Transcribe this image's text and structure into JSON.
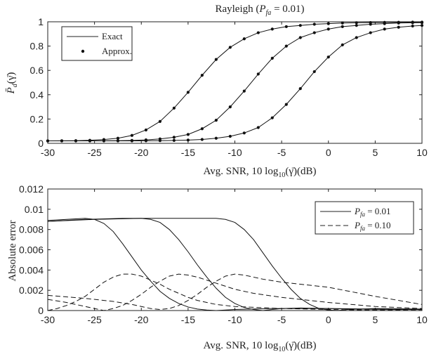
{
  "chart_data": [
    {
      "type": "line",
      "title_prefix": "Rayleigh (",
      "title_symbol": "P",
      "title_sub": "fa",
      "title_value": " = 0.01)",
      "xlabel_text": "Avg.  SNR, 10 log",
      "xlabel_sub": "10",
      "xlabel_tail": "(γ̄)(dB)",
      "ylabel_symbol": "P̄",
      "ylabel_sub": "d",
      "ylabel_tail": "(γ̄)",
      "xlim": [
        -30,
        10
      ],
      "ylim": [
        0,
        1
      ],
      "xticks": [
        "-30",
        "-25",
        "-20",
        "-15",
        "-10",
        "-5",
        "0",
        "5",
        "10"
      ],
      "yticks": [
        "0",
        "0.2",
        "0.4",
        "0.6",
        "0.8",
        "1"
      ],
      "legend": {
        "position": "top-left",
        "entries": [
          {
            "label": "Exact",
            "style": "solid-line"
          },
          {
            "label": "Approx.",
            "style": "dots"
          }
        ]
      },
      "series": [
        {
          "x": [
            -30,
            -28.5,
            -27,
            -25.5,
            -24,
            -22.5,
            -21,
            -19.5,
            -18,
            -16.5,
            -15,
            -13.5,
            -12,
            -10.5,
            -9,
            -7.5,
            -6,
            -4.5,
            -3,
            -1.5,
            0,
            1.5,
            3,
            4.5,
            6,
            7.5,
            9,
            10
          ],
          "y": [
            0.02,
            0.021,
            0.022,
            0.025,
            0.031,
            0.042,
            0.065,
            0.11,
            0.18,
            0.29,
            0.42,
            0.56,
            0.69,
            0.79,
            0.86,
            0.91,
            0.94,
            0.96,
            0.97,
            0.98,
            0.985,
            0.99,
            0.992,
            0.994,
            0.995,
            0.996,
            0.997,
            0.997
          ]
        },
        {
          "x": [
            -30,
            -28.5,
            -27,
            -25.5,
            -24,
            -22.5,
            -21,
            -19.5,
            -18,
            -16.5,
            -15,
            -13.5,
            -12,
            -10.5,
            -9,
            -7.5,
            -6,
            -4.5,
            -3,
            -1.5,
            0,
            1.5,
            3,
            4.5,
            6,
            7.5,
            9,
            10
          ],
          "y": [
            0.02,
            0.02,
            0.02,
            0.02,
            0.021,
            0.022,
            0.024,
            0.028,
            0.036,
            0.05,
            0.073,
            0.12,
            0.19,
            0.3,
            0.43,
            0.57,
            0.7,
            0.8,
            0.87,
            0.91,
            0.94,
            0.96,
            0.97,
            0.98,
            0.985,
            0.99,
            0.992,
            0.993
          ]
        },
        {
          "x": [
            -30,
            -28.5,
            -27,
            -25.5,
            -24,
            -22.5,
            -21,
            -19.5,
            -18,
            -16.5,
            -15,
            -13.5,
            -12,
            -10.5,
            -9,
            -7.5,
            -6,
            -4.5,
            -3,
            -1.5,
            0,
            1.5,
            3,
            4.5,
            6,
            7.5,
            9,
            10
          ],
          "y": [
            0.02,
            0.02,
            0.02,
            0.02,
            0.02,
            0.02,
            0.02,
            0.021,
            0.022,
            0.024,
            0.027,
            0.032,
            0.042,
            0.058,
            0.085,
            0.13,
            0.21,
            0.32,
            0.45,
            0.59,
            0.71,
            0.81,
            0.87,
            0.91,
            0.94,
            0.955,
            0.965,
            0.97
          ]
        }
      ]
    },
    {
      "type": "line",
      "xlabel_text": "Avg.  SNR, 10 log",
      "xlabel_sub": "10",
      "xlabel_tail": "(γ̄)(dB)",
      "ylabel": "Absolute error",
      "xlim": [
        -30,
        10
      ],
      "ylim": [
        0,
        0.012
      ],
      "xticks": [
        "-30",
        "-25",
        "-20",
        "-15",
        "-10",
        "-5",
        "0",
        "5",
        "10"
      ],
      "yticks": [
        "0",
        "0.002",
        "0.004",
        "0.006",
        "0.008",
        "0.01",
        "0.012"
      ],
      "legend": {
        "position": "top-right",
        "entries": [
          {
            "symbol": "P",
            "sub": "fa",
            "value": " = 0.01",
            "style": "solid"
          },
          {
            "symbol": "P",
            "sub": "fa",
            "value": " = 0.10",
            "style": "dashed"
          }
        ]
      },
      "series": [
        {
          "style": "solid",
          "x": [
            -30,
            -28,
            -26,
            -25,
            -24,
            -23,
            -22,
            -21,
            -20,
            -19,
            -18,
            -17,
            -16,
            -15,
            -14,
            -13,
            -12,
            -10,
            -6,
            -2,
            2,
            6,
            10
          ],
          "y": [
            0.0089,
            0.009,
            0.0091,
            0.009,
            0.0086,
            0.0078,
            0.0066,
            0.0053,
            0.004,
            0.0029,
            0.0019,
            0.0012,
            0.0007,
            0.00035,
            0.00015,
            5e-05,
            0,
            0.0001,
            0.0002,
            0.0002,
            0.00018,
            0.00012,
            0.0001
          ]
        },
        {
          "style": "solid",
          "x": [
            -30,
            -26,
            -22,
            -20,
            -19,
            -18,
            -17,
            -16,
            -15,
            -14,
            -13,
            -12,
            -11,
            -10,
            -9,
            -8,
            -7,
            -6,
            -5,
            -3,
            0,
            5,
            10
          ],
          "y": [
            0.0088,
            0.009,
            0.0091,
            0.0091,
            0.009,
            0.0087,
            0.008,
            0.007,
            0.0058,
            0.0045,
            0.0033,
            0.0022,
            0.0013,
            0.0007,
            0.0003,
            0.0001,
            0,
            0.0001,
            0.0002,
            0.00025,
            0.0002,
            0.00012,
            0.0001
          ]
        },
        {
          "style": "solid",
          "x": [
            -30,
            -25,
            -20,
            -15,
            -12,
            -11,
            -10,
            -9,
            -8,
            -7,
            -6,
            -5,
            -4,
            -3,
            -2,
            -1,
            0,
            1,
            2,
            5,
            10
          ],
          "y": [
            0.0088,
            0.009,
            0.0091,
            0.0091,
            0.0091,
            0.009,
            0.0087,
            0.008,
            0.007,
            0.0057,
            0.0044,
            0.0032,
            0.0021,
            0.0012,
            0.0006,
            0.0002,
            5e-05,
            0,
            0.0001,
            0.0002,
            0.00015
          ]
        },
        {
          "style": "dashed",
          "x": [
            -30,
            -29,
            -28,
            -27,
            -26,
            -25,
            -24,
            -23,
            -22,
            -21,
            -20,
            -19,
            -18,
            -17,
            -16,
            -15,
            -14,
            -13,
            -12,
            -10,
            -5,
            0,
            5,
            10
          ],
          "y": [
            0,
            0.0002,
            0.0005,
            0.0009,
            0.0014,
            0.0021,
            0.0028,
            0.0033,
            0.0036,
            0.0036,
            0.0034,
            0.003,
            0.0026,
            0.0021,
            0.0017,
            0.0013,
            0.001,
            0.0008,
            0.0006,
            0.0004,
            0.0002,
            0.0001,
            5e-05,
            2e-05
          ]
        },
        {
          "style": "dashed",
          "x": [
            -30,
            -28,
            -26,
            -25,
            -24,
            -23,
            -22,
            -21,
            -20,
            -19,
            -18,
            -17,
            -16,
            -15,
            -14,
            -13,
            -12,
            -11,
            -10,
            -8,
            -5,
            0,
            5,
            10
          ],
          "y": [
            0.0011,
            0.0008,
            0.0004,
            0.0002,
            0,
            0.0002,
            0.0005,
            0.001,
            0.0016,
            0.0023,
            0.0029,
            0.0034,
            0.0036,
            0.0035,
            0.0033,
            0.003,
            0.0027,
            0.0024,
            0.0021,
            0.0017,
            0.0013,
            0.0008,
            0.0004,
            0.0002
          ]
        },
        {
          "style": "dashed",
          "x": [
            -30,
            -26,
            -23,
            -21,
            -20,
            -19,
            -18,
            -17,
            -16,
            -15,
            -14,
            -13,
            -12,
            -11,
            -10,
            -9,
            -8,
            -7,
            -5,
            -3,
            0,
            5,
            10
          ],
          "y": [
            0.0015,
            0.0012,
            0.0009,
            0.0006,
            0.0004,
            0.0002,
            0.0001,
            0.0002,
            0.0005,
            0.001,
            0.0016,
            0.0023,
            0.0029,
            0.0034,
            0.0036,
            0.0035,
            0.0033,
            0.0031,
            0.0028,
            0.0026,
            0.0023,
            0.0014,
            0.0006
          ]
        }
      ]
    }
  ]
}
